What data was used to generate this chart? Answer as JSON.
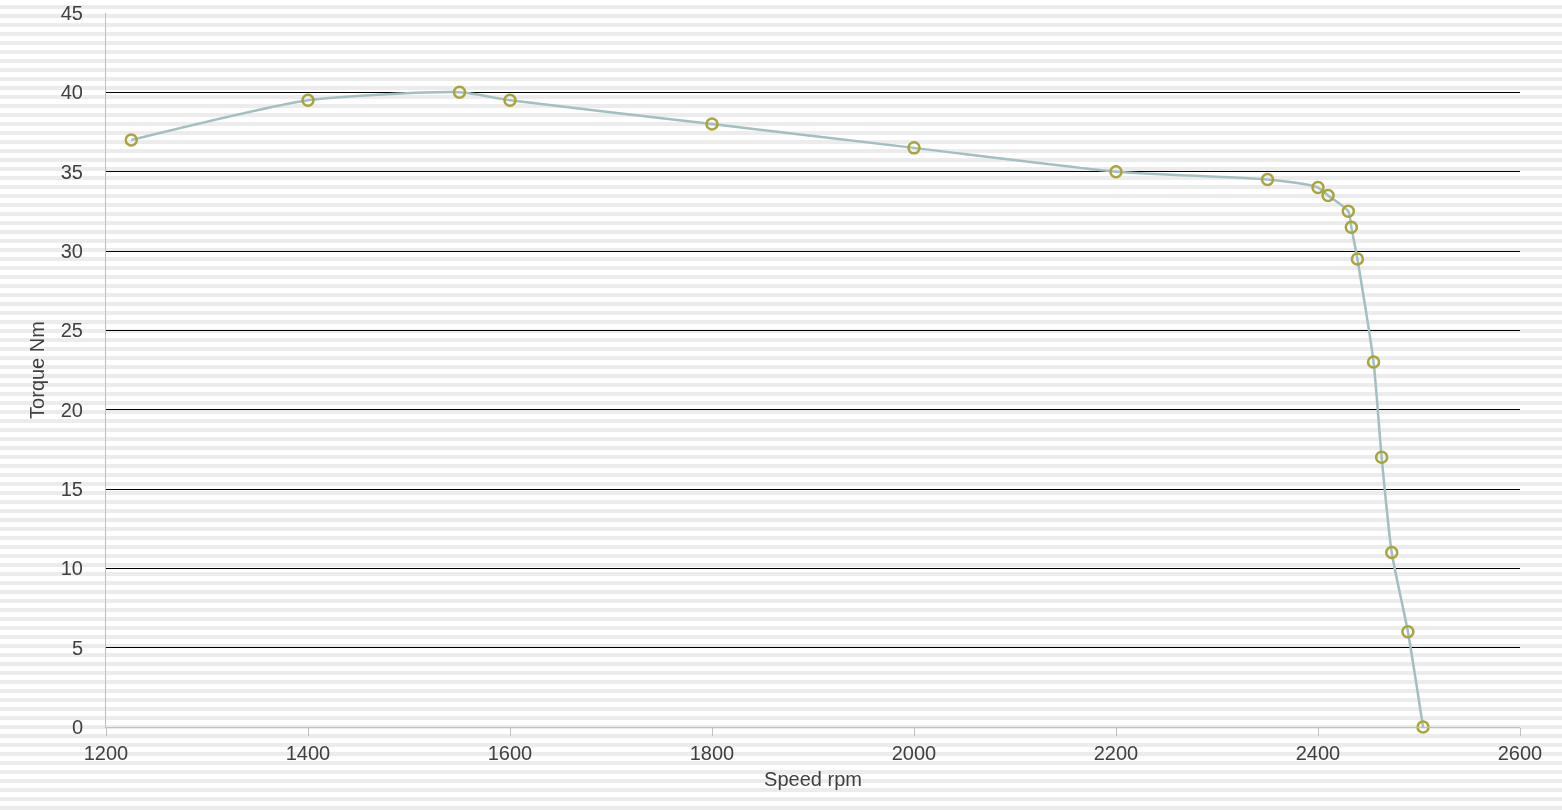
{
  "chart_data": {
    "type": "line",
    "xlabel": "Speed rpm",
    "ylabel": "Torque Nm",
    "x": [
      1225,
      1400,
      1550,
      1600,
      1800,
      2000,
      2200,
      2350,
      2400,
      2410,
      2430,
      2433,
      2439,
      2455,
      2463,
      2473,
      2489,
      2504
    ],
    "series": [
      {
        "color": "#a3bfbf",
        "colors": [
          "#a9a43c",
          "#a9a43c",
          "#a9a43c",
          "#a9a43c",
          "#a9a43c",
          "#a9a43c",
          "#a9a43c",
          "#a9a43c",
          "#a9a43c",
          "#a9a43c",
          "#a9a43c",
          "#a9a43c",
          "#a9a43c",
          "#a9a43c",
          "#a9a43c",
          "#a9a43c",
          "#a9a43c",
          "#a9a43c"
        ],
        "values": [
          37,
          39.5,
          40,
          39.5,
          38,
          36.5,
          35,
          34.5,
          34,
          33.5,
          32.5,
          31.5,
          29.5,
          23,
          17,
          11,
          6,
          0
        ]
      }
    ],
    "marker": "circle",
    "line_style": "solid",
    "grid": "y",
    "xlim": [
      1200,
      2600
    ],
    "xticks": [
      1200,
      1400,
      1600,
      1800,
      2000,
      2200,
      2400,
      2600
    ],
    "ylim": [
      0,
      45
    ],
    "yticks": [
      0,
      5,
      10,
      15,
      20,
      25,
      30,
      35,
      40,
      45
    ]
  }
}
